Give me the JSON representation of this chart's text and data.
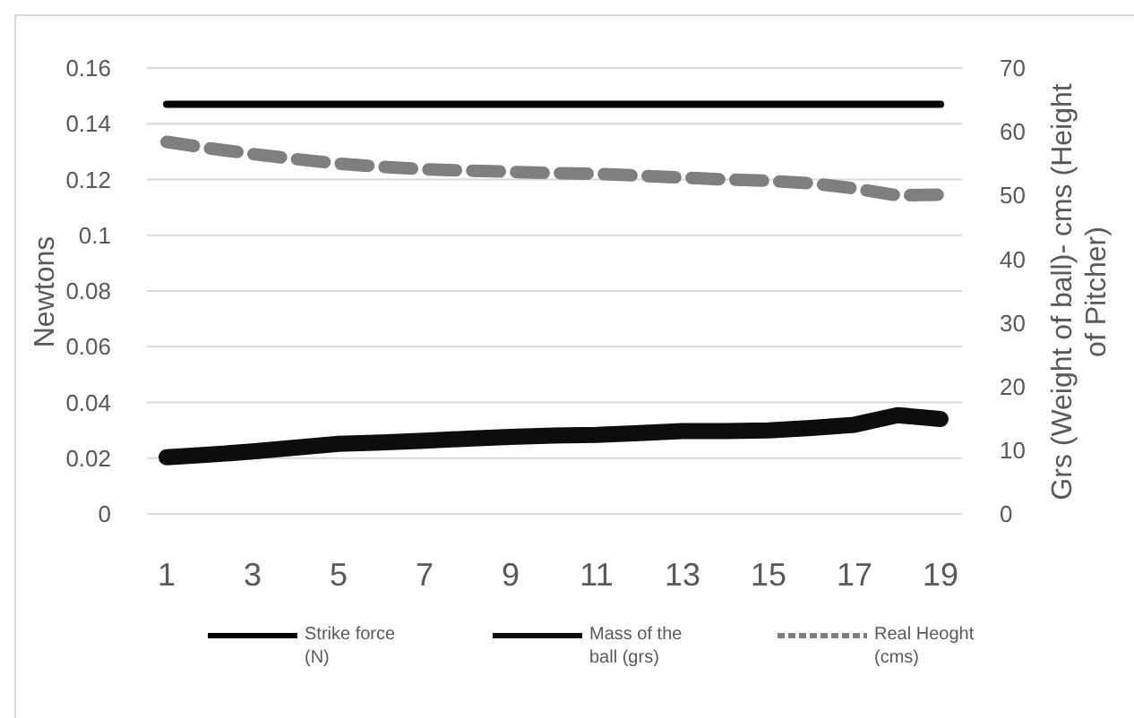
{
  "chart_data": {
    "type": "line",
    "x": [
      1,
      2,
      3,
      4,
      5,
      6,
      7,
      8,
      9,
      10,
      11,
      12,
      13,
      14,
      15,
      16,
      17,
      18,
      19
    ],
    "xlim": [
      0.5,
      19.5
    ],
    "xticks": [
      1,
      3,
      5,
      7,
      9,
      11,
      13,
      15,
      17,
      19
    ],
    "ylabel": "Newtons",
    "y2label": "Grs (Weight of ball)- cms (Height of Pitcher)",
    "ylim": [
      0,
      0.16
    ],
    "yticks": [
      0,
      0.02,
      0.04,
      0.06,
      0.08,
      0.1,
      0.12,
      0.14,
      0.16
    ],
    "y2lim": [
      0,
      70
    ],
    "y2ticks": [
      0,
      10,
      20,
      30,
      40,
      50,
      60,
      70
    ],
    "grid": "y",
    "legend": "bottom",
    "series": [
      {
        "name": "Strike force (N)",
        "color": "#000000",
        "line_style": "solid",
        "values": [
          0.147,
          0.147,
          0.147,
          0.147,
          0.147,
          0.147,
          0.147,
          0.147,
          0.147,
          0.147,
          0.147,
          0.147,
          0.147,
          0.147,
          0.147,
          0.147,
          0.147,
          0.147,
          0.147
        ]
      },
      {
        "name": "Mass of the ball (grs)",
        "color": "#0d0d0d",
        "line_style": "solid",
        "axis": "y2",
        "values": [
          8.9,
          9.3,
          9.8,
          10.4,
          11.0,
          11.2,
          11.5,
          11.8,
          12.1,
          12.3,
          12.4,
          12.7,
          13.0,
          13.0,
          13.1,
          13.5,
          14.0,
          15.5,
          14.9
        ]
      },
      {
        "name": "Real Heoght (cms)",
        "color": "#7f7f7f",
        "line_style": "dashed",
        "axis": "y2",
        "values": [
          58.4,
          57.4,
          56.5,
          55.7,
          55.0,
          54.5,
          54.1,
          53.9,
          53.7,
          53.5,
          53.4,
          53.1,
          52.8,
          52.5,
          52.3,
          51.9,
          51.1,
          50.0,
          50.1
        ]
      }
    ]
  }
}
